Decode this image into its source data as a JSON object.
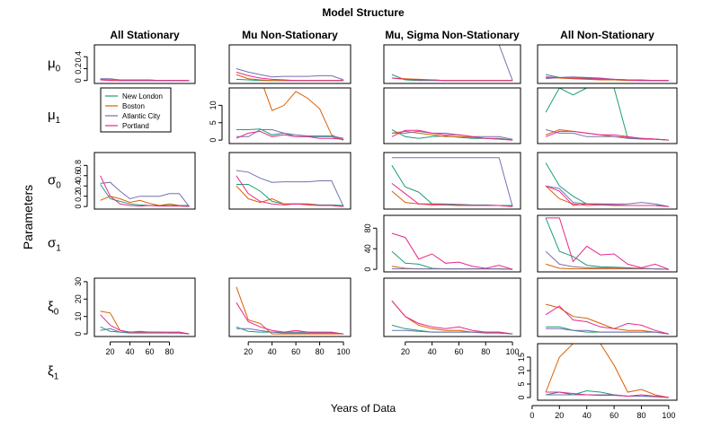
{
  "title": "Model Structure",
  "ylabel": "Parameters",
  "xlabel": "Years of Data",
  "columns": [
    "All Stationary",
    "Mu Non-Stationary",
    "Mu, Sigma Non-Stationary",
    "All Non-Stationary"
  ],
  "row_labels": [
    {
      "sym": "μ",
      "sub": "0"
    },
    {
      "sym": "μ",
      "sub": "1"
    },
    {
      "sym": "σ",
      "sub": "0"
    },
    {
      "sym": "σ",
      "sub": "1"
    },
    {
      "sym": "ξ",
      "sub": "0"
    },
    {
      "sym": "ξ",
      "sub": "1"
    }
  ],
  "legend": [
    {
      "name": "New London",
      "color": "#1b9e77"
    },
    {
      "name": "Boston",
      "color": "#d95f02"
    },
    {
      "name": "Atlantic City",
      "color": "#7570b3"
    },
    {
      "name": "Portland",
      "color": "#e7298a"
    }
  ],
  "chart_data": {
    "type": "line",
    "x": [
      10,
      20,
      30,
      40,
      50,
      60,
      70,
      80,
      90,
      100
    ],
    "panels": [
      {
        "row": 0,
        "col": 0,
        "ylim": [
          -0.05,
          0.6
        ],
        "yticks": [
          0.0,
          0.2,
          0.4
        ],
        "series": [
          [
            0.02,
            0.01,
            0.0,
            0.0,
            0.0,
            0.0,
            0.0,
            0.0,
            0.0,
            0.0
          ],
          [
            0.01,
            0.01,
            0.0,
            0.0,
            0.0,
            0.0,
            0.0,
            0.0,
            0.0,
            0.0
          ],
          [
            0.03,
            0.03,
            0.01,
            0.01,
            0.01,
            0.01,
            0.0,
            0.0,
            0.0,
            0.0
          ],
          [
            0.01,
            0.0,
            0.0,
            0.0,
            0.0,
            0.0,
            0.0,
            0.0,
            0.0,
            0.0
          ]
        ]
      },
      {
        "row": 0,
        "col": 1,
        "ylim": [
          -0.05,
          0.6
        ],
        "series": [
          [
            0.02,
            0.01,
            0.0,
            0.0,
            0.0,
            0.0,
            0.0,
            0.0,
            0.0,
            0.0
          ],
          [
            0.1,
            0.03,
            0.01,
            0.0,
            0.0,
            0.0,
            0.0,
            0.0,
            0.0,
            0.0
          ],
          [
            0.2,
            0.14,
            0.1,
            0.06,
            0.07,
            0.07,
            0.07,
            0.08,
            0.08,
            0.01
          ],
          [
            0.14,
            0.08,
            0.04,
            0.02,
            0.01,
            0.0,
            0.0,
            0.0,
            0.0,
            0.0
          ]
        ]
      },
      {
        "row": 0,
        "col": 2,
        "ylim": [
          -0.05,
          0.6
        ],
        "series": [
          [
            0.1,
            0.01,
            0.0,
            0.0,
            0.0,
            0.0,
            0.0,
            0.0,
            0.0,
            0.0
          ],
          [
            0.04,
            0.03,
            0.02,
            0.01,
            0.0,
            0.0,
            0.0,
            0.0,
            0.0,
            0.0
          ],
          [
            0.6,
            0.6,
            0.6,
            0.6,
            0.6,
            0.6,
            0.6,
            0.6,
            0.6,
            0.0
          ],
          [
            0.04,
            0.02,
            0.01,
            0.01,
            0.0,
            0.0,
            0.0,
            0.0,
            0.0,
            0.0
          ]
        ]
      },
      {
        "row": 0,
        "col": 3,
        "ylim": [
          -0.05,
          0.6
        ],
        "series": [
          [
            0.1,
            0.05,
            0.04,
            0.03,
            0.02,
            0.01,
            0.01,
            0.0,
            0.0,
            0.0
          ],
          [
            0.05,
            0.04,
            0.03,
            0.02,
            0.01,
            0.01,
            0.0,
            0.0,
            0.0,
            0.0
          ],
          [
            0.03,
            0.05,
            0.06,
            0.05,
            0.04,
            0.02,
            0.01,
            0.01,
            0.0,
            0.0
          ],
          [
            0.06,
            0.05,
            0.04,
            0.04,
            0.03,
            0.02,
            0.01,
            0.0,
            0.0,
            0.0
          ]
        ]
      },
      {
        "row": 1,
        "col": 1,
        "ylim": [
          -1,
          15
        ],
        "yticks": [
          0,
          5,
          10
        ],
        "series": [
          [
            3,
            3,
            3.2,
            1.5,
            2,
            1,
            1,
            1,
            1,
            0
          ],
          [
            22,
            20,
            18,
            8.5,
            10,
            14,
            12,
            9,
            1.5,
            0
          ],
          [
            1,
            1,
            3,
            3,
            2,
            1.5,
            1.2,
            1.2,
            1.2,
            0.5
          ],
          [
            0.5,
            2,
            2.5,
            1,
            1.5,
            1,
            1,
            0.5,
            0.5,
            0.2
          ]
        ]
      },
      {
        "row": 1,
        "col": 2,
        "ylim": [
          -1,
          15
        ],
        "series": [
          [
            3,
            1,
            0.5,
            1,
            1.2,
            0.8,
            0.5,
            0.5,
            0.5,
            0
          ],
          [
            2,
            2.5,
            2,
            1.5,
            1,
            1,
            0.8,
            0.5,
            0.3,
            0
          ],
          [
            2,
            2,
            2.5,
            2,
            2,
            1.5,
            1,
            1,
            1,
            0.2
          ],
          [
            1,
            2.8,
            2.8,
            2,
            1.5,
            1.5,
            1,
            0.5,
            0.3,
            0
          ]
        ]
      },
      {
        "row": 1,
        "col": 3,
        "ylim": [
          -1,
          15
        ],
        "series": [
          [
            8,
            15,
            13,
            15,
            15,
            15,
            0.5,
            0.3,
            0.2,
            0
          ],
          [
            1.5,
            3,
            2.5,
            2,
            1.5,
            1,
            0.8,
            0.5,
            0.3,
            0
          ],
          [
            3,
            2,
            2,
            1,
            1,
            1,
            0.5,
            0.5,
            0.3,
            0
          ],
          [
            1,
            2.5,
            2.5,
            2,
            1.5,
            1.5,
            1,
            0.5,
            0.3,
            0
          ]
        ]
      },
      {
        "row": 2,
        "col": 0,
        "ylim": [
          -0.05,
          1.05
        ],
        "yticks": [
          0.0,
          0.2,
          0.4,
          0.6,
          0.8
        ],
        "series": [
          [
            0.43,
            0.15,
            0.1,
            0.05,
            0.03,
            0.02,
            0.02,
            0.02,
            0.02,
            0.02
          ],
          [
            0.12,
            0.2,
            0.15,
            0.08,
            0.12,
            0.06,
            0.02,
            0.05,
            0.02,
            0.0
          ],
          [
            0.45,
            0.47,
            0.3,
            0.15,
            0.2,
            0.2,
            0.2,
            0.25,
            0.25,
            0.0
          ],
          [
            0.6,
            0.2,
            0.05,
            0.02,
            0.01,
            0.02,
            0.01,
            0.01,
            0.01,
            0.0
          ]
        ]
      },
      {
        "row": 2,
        "col": 1,
        "ylim": [
          -0.05,
          1.05
        ],
        "series": [
          [
            0.43,
            0.43,
            0.3,
            0.1,
            0.05,
            0.05,
            0.05,
            0.03,
            0.03,
            0.02
          ],
          [
            0.4,
            0.15,
            0.08,
            0.15,
            0.05,
            0.05,
            0.05,
            0.02,
            0.02,
            0.0
          ],
          [
            0.7,
            0.67,
            0.55,
            0.47,
            0.48,
            0.48,
            0.48,
            0.5,
            0.5,
            0.0
          ],
          [
            0.6,
            0.25,
            0.1,
            0.05,
            0.03,
            0.05,
            0.03,
            0.02,
            0.02,
            0.0
          ]
        ]
      },
      {
        "row": 2,
        "col": 2,
        "ylim": [
          -0.05,
          1.05
        ],
        "series": [
          [
            0.8,
            0.38,
            0.28,
            0.05,
            0.05,
            0.04,
            0.03,
            0.03,
            0.02,
            0.02
          ],
          [
            0.3,
            0.08,
            0.05,
            0.03,
            0.03,
            0.02,
            0.02,
            0.02,
            0.02,
            0.0
          ],
          [
            0.95,
            0.95,
            0.95,
            0.95,
            0.95,
            0.95,
            0.95,
            0.95,
            0.95,
            0.0
          ],
          [
            0.45,
            0.25,
            0.05,
            0.05,
            0.03,
            0.03,
            0.02,
            0.02,
            0.02,
            0.0
          ]
        ]
      },
      {
        "row": 2,
        "col": 3,
        "ylim": [
          -0.05,
          1.05
        ],
        "series": [
          [
            0.85,
            0.4,
            0.2,
            0.05,
            0.05,
            0.03,
            0.02,
            0.02,
            0.02,
            0.0
          ],
          [
            0.4,
            0.15,
            0.05,
            0.02,
            0.03,
            0.02,
            0.02,
            0.02,
            0.02,
            0.0
          ],
          [
            0.4,
            0.35,
            0.08,
            0.05,
            0.05,
            0.05,
            0.05,
            0.08,
            0.05,
            0.0
          ],
          [
            0.4,
            0.3,
            0.02,
            0.05,
            0.03,
            0.03,
            0.02,
            0.02,
            0.02,
            0.0
          ]
        ]
      },
      {
        "row": 3,
        "col": 2,
        "ylim": [
          -5,
          105
        ],
        "yticks": [
          0,
          40,
          80
        ],
        "series": [
          [
            35,
            12,
            10,
            2,
            1,
            1,
            1,
            1,
            1,
            0
          ],
          [
            6,
            2,
            1,
            1,
            1,
            1,
            1,
            1,
            1,
            0
          ],
          [
            1,
            1,
            1,
            1,
            1,
            1,
            1,
            1,
            1,
            0
          ],
          [
            70,
            62,
            20,
            30,
            12,
            14,
            6,
            2,
            8,
            0
          ]
        ]
      },
      {
        "row": 3,
        "col": 3,
        "ylim": [
          -5,
          105
        ],
        "series": [
          [
            100,
            35,
            25,
            8,
            5,
            4,
            3,
            2,
            1,
            0
          ],
          [
            10,
            2,
            1,
            1,
            1,
            1,
            1,
            1,
            1,
            0
          ],
          [
            35,
            10,
            5,
            3,
            3,
            3,
            2,
            2,
            1,
            0
          ],
          [
            100,
            100,
            15,
            45,
            28,
            30,
            10,
            3,
            10,
            0
          ]
        ]
      },
      {
        "row": 4,
        "col": 0,
        "ylim": [
          -1.5,
          32
        ],
        "yticks": [
          0,
          10,
          20,
          30
        ],
        "series": [
          [
            4,
            1.5,
            1,
            0.5,
            0.5,
            0.5,
            0.5,
            0.5,
            0.5,
            0
          ],
          [
            13,
            12,
            2,
            1,
            1.5,
            1,
            1,
            0.5,
            1,
            0
          ],
          [
            2,
            3,
            1,
            1,
            1,
            1,
            1,
            0.5,
            0.5,
            0
          ],
          [
            11,
            5,
            2,
            1,
            1,
            1,
            1,
            1,
            1,
            0
          ]
        ]
      },
      {
        "row": 4,
        "col": 1,
        "ylim": [
          -1.5,
          32
        ],
        "series": [
          [
            4,
            1.5,
            1,
            1,
            0.5,
            0.5,
            0.5,
            0.5,
            0.5,
            0
          ],
          [
            27,
            8,
            6,
            0,
            0,
            0,
            0,
            0,
            0,
            0
          ],
          [
            3,
            3,
            2,
            1,
            1,
            1,
            1,
            0.5,
            0.5,
            0
          ],
          [
            18,
            7,
            4,
            2,
            1,
            2,
            1,
            1,
            1,
            0
          ]
        ]
      },
      {
        "row": 4,
        "col": 2,
        "ylim": [
          -1.5,
          32
        ],
        "series": [
          [
            5,
            3,
            2,
            1,
            1,
            1,
            1,
            0.5,
            0.5,
            0
          ],
          [
            19,
            10,
            5,
            3,
            2,
            2,
            1,
            1,
            1,
            0
          ],
          [
            2,
            2,
            1.5,
            1,
            1,
            1,
            1,
            0.5,
            0.5,
            0
          ],
          [
            19,
            10,
            6,
            4,
            3,
            4,
            2,
            1,
            1,
            0
          ]
        ]
      },
      {
        "row": 4,
        "col": 3,
        "ylim": [
          -1.5,
          32
        ],
        "series": [
          [
            4,
            4,
            2,
            1,
            1,
            1,
            1,
            1,
            1,
            0
          ],
          [
            17,
            15,
            10,
            9,
            6,
            3,
            2,
            2,
            1,
            0
          ],
          [
            3,
            3,
            2,
            2,
            1,
            1,
            1,
            1,
            1,
            0
          ],
          [
            11,
            16,
            8,
            7,
            4,
            3,
            6,
            5,
            2,
            0
          ]
        ]
      },
      {
        "row": 5,
        "col": 3,
        "ylim": [
          -1,
          20
        ],
        "yticks": [
          0,
          5,
          10,
          15
        ],
        "xticks": [
          0,
          20,
          40,
          60,
          80,
          100
        ],
        "series": [
          [
            1,
            2,
            1,
            2.5,
            2,
            1,
            0.5,
            0.5,
            0.3,
            0
          ],
          [
            2,
            15,
            20,
            20,
            20,
            12,
            2,
            3,
            1,
            0
          ],
          [
            1,
            1,
            1,
            1,
            1,
            1,
            0.5,
            0.5,
            0.5,
            0
          ],
          [
            2,
            2,
            1.5,
            1,
            0.8,
            0.8,
            0.5,
            1,
            0.5,
            0
          ]
        ]
      }
    ],
    "bottom_xticks": [
      [
        20,
        40,
        60,
        80
      ],
      [
        20,
        40,
        60,
        80,
        100
      ],
      [
        20,
        40,
        60,
        80,
        100
      ]
    ]
  }
}
